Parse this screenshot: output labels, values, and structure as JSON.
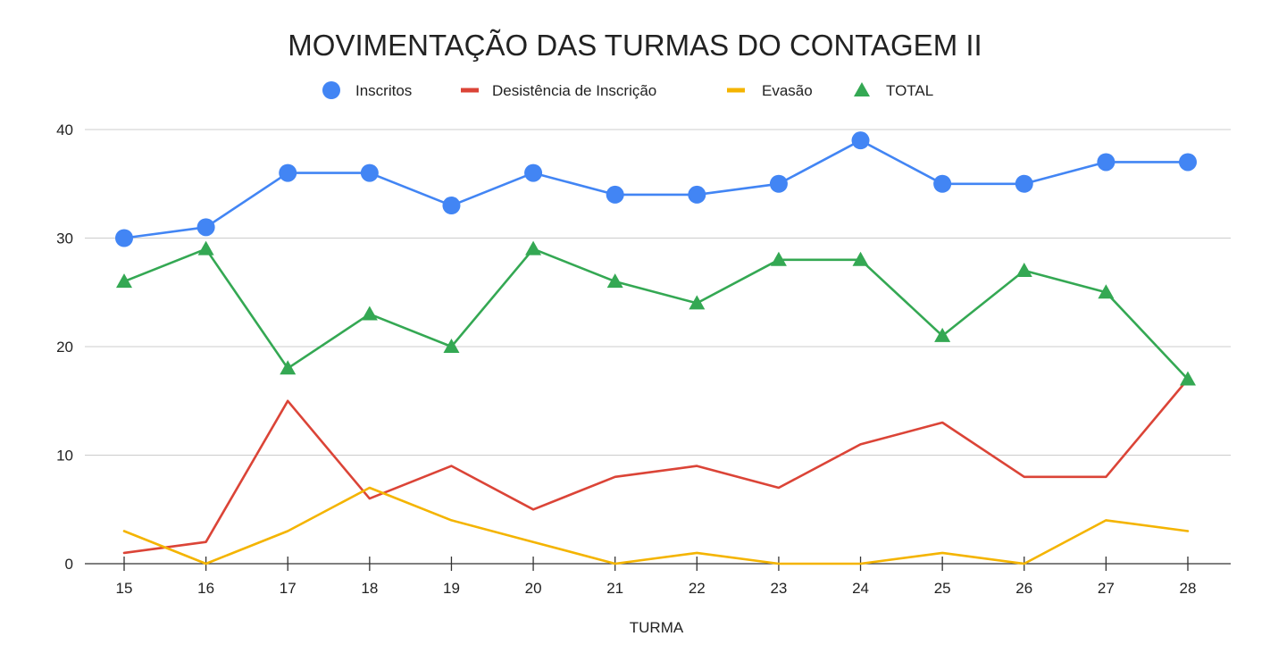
{
  "chart_data": {
    "type": "line",
    "title": "MOVIMENTAÇÃO DAS TURMAS DO CONTAGEM II",
    "xlabel": "TURMA",
    "ylabel": "",
    "ylim": [
      0,
      40
    ],
    "yticks": [
      0,
      10,
      20,
      30,
      40
    ],
    "grid": true,
    "legend_position": "top",
    "categories": [
      "15",
      "16",
      "17",
      "18",
      "19",
      "20",
      "21",
      "22",
      "23",
      "24",
      "25",
      "26",
      "27",
      "28"
    ],
    "series": [
      {
        "name": "Inscritos",
        "color": "#4285f4",
        "marker": "circle",
        "values": [
          30,
          31,
          36,
          36,
          33,
          36,
          34,
          34,
          35,
          39,
          35,
          35,
          37,
          37
        ]
      },
      {
        "name": "Desistência de Inscrição",
        "color": "#db4437",
        "marker": "none",
        "values": [
          1,
          2,
          15,
          6,
          9,
          5,
          8,
          9,
          7,
          11,
          13,
          8,
          8,
          17
        ]
      },
      {
        "name": "Evasão",
        "color": "#f4b400",
        "marker": "none",
        "values": [
          3,
          0,
          3,
          7,
          4,
          2,
          0,
          1,
          0,
          0,
          1,
          0,
          4,
          3
        ]
      },
      {
        "name": "TOTAL",
        "color": "#34a853",
        "marker": "triangle",
        "values": [
          26,
          29,
          18,
          23,
          20,
          29,
          26,
          24,
          28,
          28,
          21,
          27,
          25,
          17
        ]
      }
    ]
  }
}
